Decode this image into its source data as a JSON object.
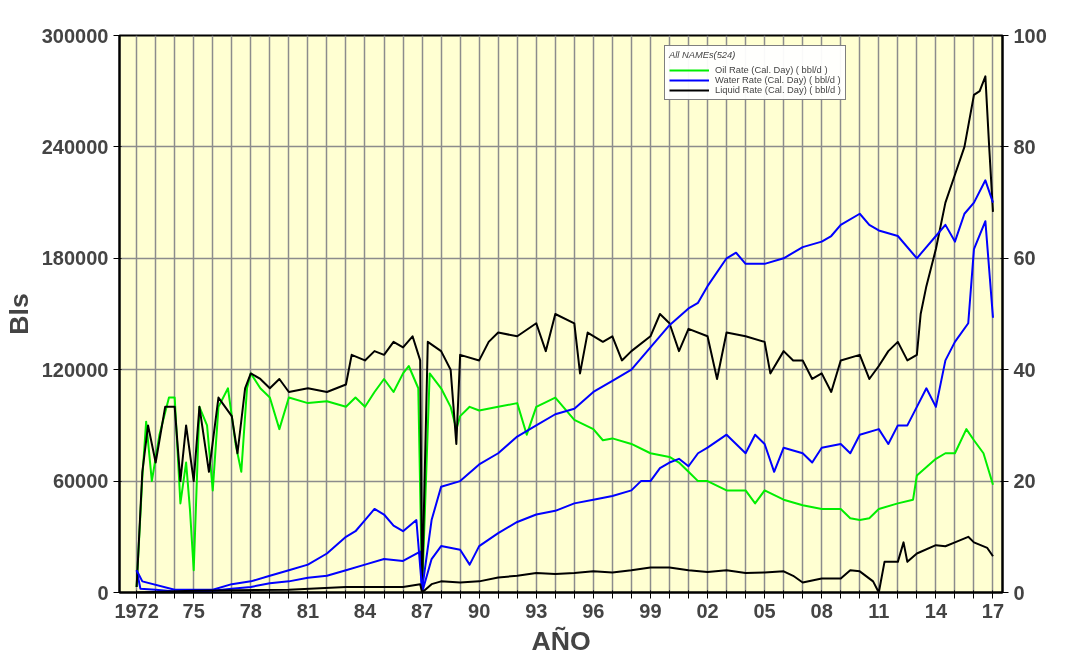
{
  "chart_data": {
    "type": "line",
    "xlabel": "AÑO",
    "ylabel": "Bls",
    "legend_title": "All NAMEs(524)",
    "legend": "top right",
    "grid": true,
    "marker": "none",
    "line_style": "solid",
    "xlim": [
      1971.1,
      2017.5
    ],
    "xticks": [
      {
        "value": 1972,
        "label": "1972"
      },
      {
        "value": 1973,
        "label": null
      },
      {
        "value": 1974,
        "label": null
      },
      {
        "value": 1975,
        "label": "75"
      },
      {
        "value": 1976,
        "label": null
      },
      {
        "value": 1977,
        "label": null
      },
      {
        "value": 1978,
        "label": "78"
      },
      {
        "value": 1979,
        "label": null
      },
      {
        "value": 1980,
        "label": null
      },
      {
        "value": 1981,
        "label": "81"
      },
      {
        "value": 1982,
        "label": null
      },
      {
        "value": 1983,
        "label": null
      },
      {
        "value": 1984,
        "label": "84"
      },
      {
        "value": 1985,
        "label": null
      },
      {
        "value": 1986,
        "label": null
      },
      {
        "value": 1987,
        "label": "87"
      },
      {
        "value": 1988,
        "label": null
      },
      {
        "value": 1989,
        "label": null
      },
      {
        "value": 1990,
        "label": "90"
      },
      {
        "value": 1991,
        "label": null
      },
      {
        "value": 1992,
        "label": null
      },
      {
        "value": 1993,
        "label": "93"
      },
      {
        "value": 1994,
        "label": null
      },
      {
        "value": 1995,
        "label": null
      },
      {
        "value": 1996,
        "label": "96"
      },
      {
        "value": 1997,
        "label": null
      },
      {
        "value": 1998,
        "label": null
      },
      {
        "value": 1999,
        "label": "99"
      },
      {
        "value": 2000,
        "label": null
      },
      {
        "value": 2001,
        "label": null
      },
      {
        "value": 2002,
        "label": "02"
      },
      {
        "value": 2003,
        "label": null
      },
      {
        "value": 2004,
        "label": null
      },
      {
        "value": 2005,
        "label": "05"
      },
      {
        "value": 2006,
        "label": null
      },
      {
        "value": 2007,
        "label": null
      },
      {
        "value": 2008,
        "label": "08"
      },
      {
        "value": 2009,
        "label": null
      },
      {
        "value": 2010,
        "label": null
      },
      {
        "value": 2011,
        "label": "11"
      },
      {
        "value": 2012,
        "label": null
      },
      {
        "value": 2013,
        "label": null
      },
      {
        "value": 2014,
        "label": "14"
      },
      {
        "value": 2015,
        "label": null
      },
      {
        "value": 2016,
        "label": null
      },
      {
        "value": 2017,
        "label": "17"
      }
    ],
    "ylim": [
      0,
      300000
    ],
    "yticks": [
      0,
      60000,
      120000,
      180000,
      240000,
      300000
    ],
    "y2lim": [
      0,
      100
    ],
    "y2ticks": [
      0,
      20,
      40,
      60,
      80,
      100
    ],
    "series": [
      {
        "name": "Oil Rate (Cal. Day) ( bbl/d )",
        "color": "#00ee00",
        "x": [
          1972.0,
          1972.3,
          1972.5,
          1972.8,
          1973.2,
          1973.7,
          1974,
          1974.3,
          1974.6,
          1974.8,
          1975,
          1975.3,
          1975.7,
          1976,
          1976.3,
          1976.8,
          1977.2,
          1977.5,
          1977.8,
          1978,
          1978.5,
          1979,
          1979.5,
          1980,
          1981,
          1982,
          1983,
          1983.5,
          1984,
          1984.5,
          1985,
          1985.5,
          1986,
          1986.3,
          1986.8,
          1987.0,
          1987.4,
          1988,
          1988.5,
          1988.8,
          1989,
          1989.5,
          1990,
          1991,
          1992,
          1992.5,
          1993,
          1994,
          1995,
          1996,
          1996.5,
          1997,
          1998,
          1999,
          2000,
          2000.5,
          2001,
          2001.5,
          2002,
          2003,
          2004,
          2004.5,
          2005,
          2006,
          2007,
          2008,
          2009,
          2009.5,
          2010,
          2010.5,
          2011,
          2012,
          2012.8,
          2013,
          2014,
          2014.5,
          2015,
          2015.6,
          2016,
          2016.5,
          2017
        ],
        "values": [
          3000,
          62000,
          92000,
          60000,
          85000,
          105000,
          105000,
          48000,
          70000,
          45000,
          12000,
          100000,
          90000,
          55000,
          100000,
          110000,
          80000,
          65000,
          110000,
          118000,
          110000,
          105000,
          88000,
          105000,
          102000,
          103000,
          100000,
          105000,
          100000,
          108000,
          115000,
          108000,
          118000,
          122000,
          110000,
          0,
          118000,
          110000,
          100000,
          88000,
          95000,
          100000,
          98000,
          100000,
          102000,
          85000,
          100000,
          105000,
          93000,
          88000,
          82000,
          83000,
          80000,
          75000,
          73000,
          70000,
          65000,
          60000,
          60000,
          55000,
          55000,
          48000,
          55000,
          50000,
          47000,
          45000,
          45000,
          40000,
          39000,
          40000,
          45000,
          48000,
          50000,
          63000,
          72000,
          75000,
          75000,
          88000,
          82000,
          75000,
          58000
        ]
      },
      {
        "name": "Water Rate (Cal. Day) ( bbl/d )",
        "color": "#0000ff",
        "x": [
          1972.0,
          1972.2,
          1973,
          1974,
          1975,
          1976,
          1977,
          1978,
          1979,
          1980,
          1981,
          1982,
          1983,
          1984,
          1985,
          1986,
          1986.9,
          1987.0,
          1987.5,
          1988,
          1989,
          1989.5,
          1990,
          1991,
          1992,
          1993,
          1994,
          1995,
          1996,
          1997,
          1998,
          1998.5,
          1999,
          1999.5,
          2000,
          2000.5,
          2001,
          2001.5,
          2002,
          2003,
          2003.5,
          2004,
          2004.5,
          2005,
          2005.5,
          2006,
          2007,
          2007.5,
          2008,
          2009,
          2009.5,
          2010,
          2011,
          2011.5,
          2012,
          2012.5,
          2013,
          2013.5,
          2014,
          2014.5,
          2015,
          2015.7,
          2016,
          2016.6,
          2017
        ],
        "values": [
          12000,
          2000,
          1500,
          500,
          500,
          1000,
          2000,
          3000,
          5000,
          6000,
          8000,
          9000,
          12000,
          15000,
          18000,
          17000,
          22000,
          0,
          18000,
          25000,
          23000,
          15000,
          25000,
          32000,
          38000,
          42000,
          44000,
          48000,
          50000,
          52000,
          55000,
          60000,
          60000,
          67000,
          70000,
          72000,
          68000,
          75000,
          78000,
          85000,
          80000,
          75000,
          85000,
          80000,
          65000,
          78000,
          75000,
          70000,
          78000,
          80000,
          75000,
          85000,
          88000,
          80000,
          90000,
          90000,
          100000,
          110000,
          100000,
          125000,
          135000,
          145000,
          185000,
          200000,
          148000
        ]
      },
      {
        "name": "Liquid Rate (Cal. Day) ( bbl/d )",
        "color": "#000000",
        "x": [
          1972.0,
          1972.3,
          1972.6,
          1973,
          1973.5,
          1974,
          1974.3,
          1974.6,
          1975,
          1975.3,
          1975.8,
          1976.3,
          1977,
          1977.3,
          1977.7,
          1978,
          1978.5,
          1979,
          1979.5,
          1980,
          1981,
          1982,
          1983,
          1983.3,
          1984,
          1984.5,
          1985,
          1985.5,
          1986,
          1986.5,
          1986.9,
          1987.0,
          1987.3,
          1988,
          1988.5,
          1988.8,
          1989,
          1990,
          1990.5,
          1991,
          1992,
          1993,
          1993.5,
          1994,
          1995,
          1995.3,
          1995.7,
          1996.5,
          1997,
          1997.5,
          1998,
          1999,
          1999.5,
          2000,
          2000.5,
          2001,
          2002,
          2002.5,
          2003,
          2004,
          2005,
          2005.3,
          2006,
          2006.5,
          2007,
          2007.5,
          2008,
          2008.5,
          2009,
          2010,
          2010.5,
          2011,
          2011.5,
          2012,
          2012.5,
          2013,
          2013.2,
          2013.5,
          2014,
          2014.5,
          2015,
          2015.5,
          2016,
          2016.3,
          2016.6,
          2016.8,
          2017
        ],
        "values": [
          3000,
          65000,
          90000,
          70000,
          100000,
          100000,
          60000,
          90000,
          60000,
          100000,
          65000,
          105000,
          95000,
          75000,
          110000,
          118000,
          115000,
          110000,
          115000,
          108000,
          110000,
          108000,
          112000,
          128000,
          125000,
          130000,
          128000,
          135000,
          132000,
          138000,
          125000,
          2000,
          135000,
          130000,
          120000,
          80000,
          128000,
          125000,
          135000,
          140000,
          138000,
          145000,
          130000,
          150000,
          145000,
          118000,
          140000,
          135000,
          138000,
          125000,
          130000,
          138000,
          150000,
          145000,
          130000,
          142000,
          138000,
          115000,
          140000,
          138000,
          135000,
          118000,
          130000,
          125000,
          125000,
          115000,
          118000,
          108000,
          125000,
          128000,
          115000,
          122000,
          130000,
          135000,
          125000,
          128000,
          150000,
          165000,
          185000,
          210000,
          225000,
          240000,
          268000,
          270000,
          278000,
          240000,
          205000
        ]
      },
      {
        "color": "#0000ff",
        "axis": "y2",
        "x": [
          1972.0,
          1972.3,
          1974,
          1976,
          1977,
          1978,
          1979,
          1980,
          1981,
          1982,
          1983,
          1983.5,
          1984,
          1984.5,
          1985,
          1985.5,
          1986,
          1986.7,
          1987.0,
          1987.5,
          1988,
          1989,
          1990,
          1991,
          1992,
          1993,
          1994,
          1995,
          1996,
          1997,
          1998,
          1999,
          2000,
          2001,
          2001.5,
          2002,
          2003,
          2003.5,
          2004,
          2005,
          2006,
          2007,
          2008,
          2008.5,
          2009,
          2010,
          2010.5,
          2011,
          2012,
          2013,
          2013.5,
          2014,
          2014.5,
          2015,
          2015.5,
          2016,
          2016.6,
          2017
        ],
        "values": [
          4,
          2,
          0.5,
          0.5,
          1.5,
          2,
          3,
          4,
          5,
          7,
          10,
          11,
          13,
          15,
          14,
          12,
          11,
          13,
          0.5,
          13,
          19,
          20,
          23,
          25,
          28,
          30,
          32,
          33,
          36,
          38,
          40,
          44,
          48,
          51,
          52,
          55,
          60,
          61,
          59,
          59,
          60,
          62,
          63,
          64,
          66,
          68,
          66,
          65,
          64,
          60,
          62,
          64,
          66,
          63,
          68,
          70,
          74,
          70
        ]
      },
      {
        "color": "#000000",
        "axis": "y2",
        "x": [
          1972,
          1975,
          1980,
          1983,
          1986,
          1986.9,
          1987,
          1987.5,
          1988,
          1989,
          1990,
          1991,
          1992,
          1993,
          1994,
          1995,
          1996,
          1997,
          1998,
          1999,
          2000,
          2001,
          2002,
          2003,
          2004,
          2005,
          2006,
          2006.5,
          2007,
          2008,
          2009,
          2009.5,
          2010,
          2010.7,
          2011,
          2011.3,
          2012,
          2012.3,
          2012.5,
          2013,
          2014,
          2014.5,
          2015,
          2015.7,
          2016,
          2016.7,
          2017
        ],
        "values": [
          0,
          0.3,
          0.5,
          1,
          1,
          1.5,
          0,
          1.5,
          2,
          1.8,
          2,
          2.7,
          3,
          3.5,
          3.3,
          3.5,
          3.8,
          3.6,
          4,
          4.5,
          4.5,
          4,
          3.7,
          4,
          3.5,
          3.6,
          3.8,
          3,
          1.8,
          2.5,
          2.5,
          4,
          3.8,
          2,
          0,
          5.5,
          5.5,
          9,
          5.5,
          7,
          8.5,
          8.3,
          9,
          10,
          9,
          8,
          6.5
        ]
      }
    ]
  }
}
